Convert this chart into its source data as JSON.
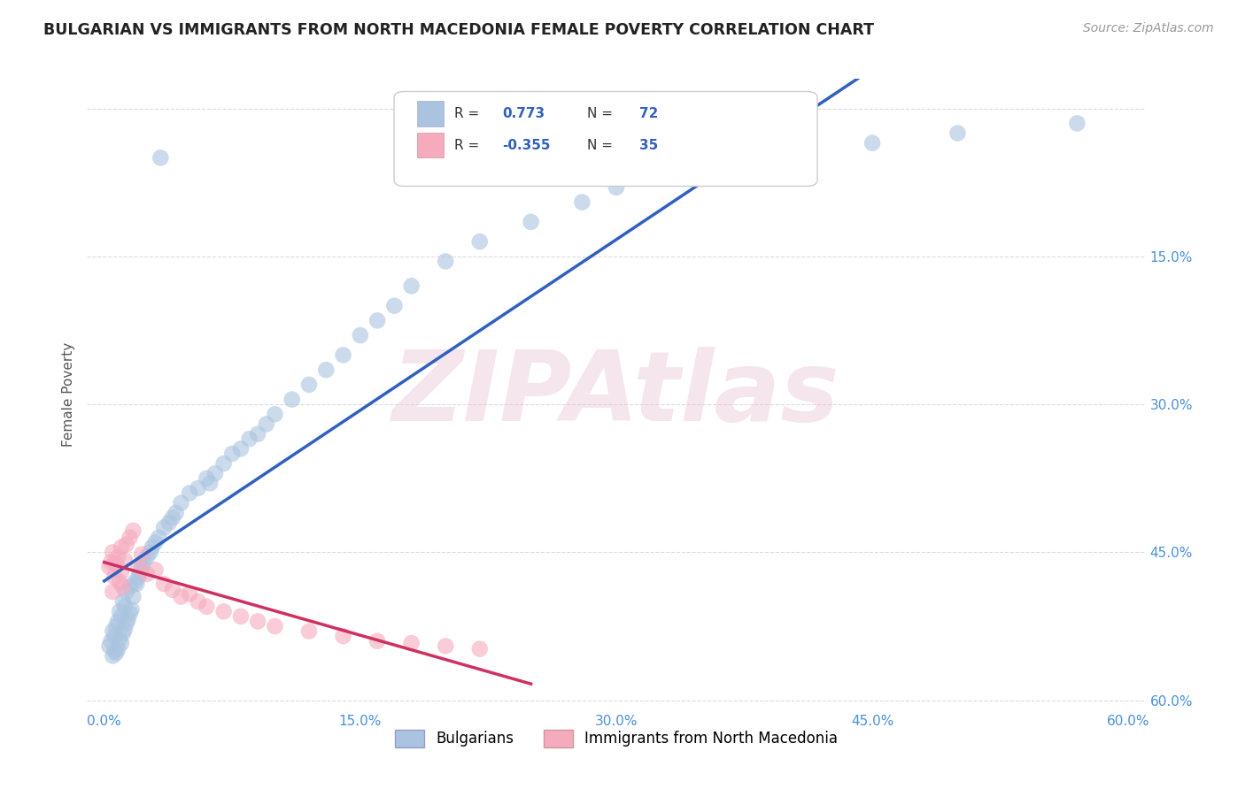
{
  "title": "BULGARIAN VS IMMIGRANTS FROM NORTH MACEDONIA FEMALE POVERTY CORRELATION CHART",
  "source": "Source: ZipAtlas.com",
  "ylabel": "Female Poverty",
  "x_tick_labels": [
    "0.0%",
    "15.0%",
    "30.0%",
    "45.0%",
    "60.0%"
  ],
  "y_tick_labels_right": [
    "60.0%",
    "45.0%",
    "30.0%",
    "15.0%",
    ""
  ],
  "x_ticks": [
    0,
    15,
    30,
    45,
    60
  ],
  "y_ticks": [
    0,
    15,
    30,
    45,
    60
  ],
  "xlim": [
    -1,
    61
  ],
  "ylim": [
    -1,
    63
  ],
  "watermark": "ZIPAtlas",
  "legend_label1": "Bulgarians",
  "legend_label2": "Immigrants from North Macedonia",
  "R1": 0.773,
  "N1": 72,
  "R2": -0.355,
  "N2": 35,
  "color_blue": "#aac4e0",
  "color_pink": "#f5aabe",
  "line_color_blue": "#3060c0",
  "line_color_pink": "#d03060",
  "background_color": "#ffffff",
  "grid_color": "#cccccc",
  "title_color": "#222222",
  "watermark_color": [
    0.91,
    0.75,
    0.82
  ],
  "blue_x": [
    0.3,
    0.4,
    0.5,
    0.5,
    0.6,
    0.6,
    0.7,
    0.7,
    0.8,
    0.8,
    0.9,
    0.9,
    1.0,
    1.0,
    1.1,
    1.1,
    1.2,
    1.2,
    1.3,
    1.3,
    1.4,
    1.5,
    1.5,
    1.6,
    1.7,
    1.8,
    1.9,
    2.0,
    2.1,
    2.2,
    2.3,
    2.5,
    2.7,
    2.8,
    3.0,
    3.2,
    3.5,
    3.8,
    4.0,
    4.2,
    4.5,
    5.0,
    5.5,
    6.0,
    6.5,
    7.0,
    7.5,
    8.0,
    8.5,
    9.0,
    9.5,
    10.0,
    11.0,
    12.0,
    13.0,
    14.0,
    15.0,
    16.0,
    17.0,
    18.0,
    20.0,
    22.0,
    25.0,
    28.0,
    30.0,
    35.0,
    40.0,
    45.0,
    50.0,
    57.0,
    3.3,
    6.2
  ],
  "blue_y": [
    5.5,
    6.0,
    4.5,
    7.0,
    5.0,
    6.5,
    4.8,
    7.5,
    5.2,
    8.0,
    6.2,
    9.0,
    5.8,
    8.5,
    6.8,
    10.0,
    7.2,
    9.5,
    7.8,
    11.0,
    8.2,
    8.8,
    11.5,
    9.2,
    10.5,
    12.0,
    11.8,
    12.5,
    13.0,
    13.5,
    14.0,
    14.5,
    15.0,
    15.5,
    16.0,
    16.5,
    17.5,
    18.0,
    18.5,
    19.0,
    20.0,
    21.0,
    21.5,
    22.5,
    23.0,
    24.0,
    25.0,
    25.5,
    26.5,
    27.0,
    28.0,
    29.0,
    30.5,
    32.0,
    33.5,
    35.0,
    37.0,
    38.5,
    40.0,
    42.0,
    44.5,
    46.5,
    48.5,
    50.5,
    52.0,
    53.5,
    55.0,
    56.5,
    57.5,
    58.5,
    55.0,
    22.0
  ],
  "pink_x": [
    0.3,
    0.4,
    0.5,
    0.5,
    0.6,
    0.7,
    0.8,
    0.9,
    1.0,
    1.0,
    1.1,
    1.2,
    1.3,
    1.5,
    1.7,
    2.0,
    2.2,
    2.5,
    3.0,
    3.5,
    4.0,
    4.5,
    5.0,
    5.5,
    6.0,
    7.0,
    8.0,
    9.0,
    10.0,
    12.0,
    14.0,
    16.0,
    18.0,
    20.0,
    22.0
  ],
  "pink_y": [
    13.5,
    14.0,
    11.0,
    15.0,
    12.5,
    13.8,
    14.5,
    12.0,
    13.0,
    15.5,
    11.5,
    14.2,
    15.8,
    16.5,
    17.2,
    13.5,
    14.8,
    12.8,
    13.2,
    11.8,
    11.2,
    10.5,
    10.8,
    10.0,
    9.5,
    9.0,
    8.5,
    8.0,
    7.5,
    7.0,
    6.5,
    6.0,
    5.8,
    5.5,
    5.2
  ]
}
